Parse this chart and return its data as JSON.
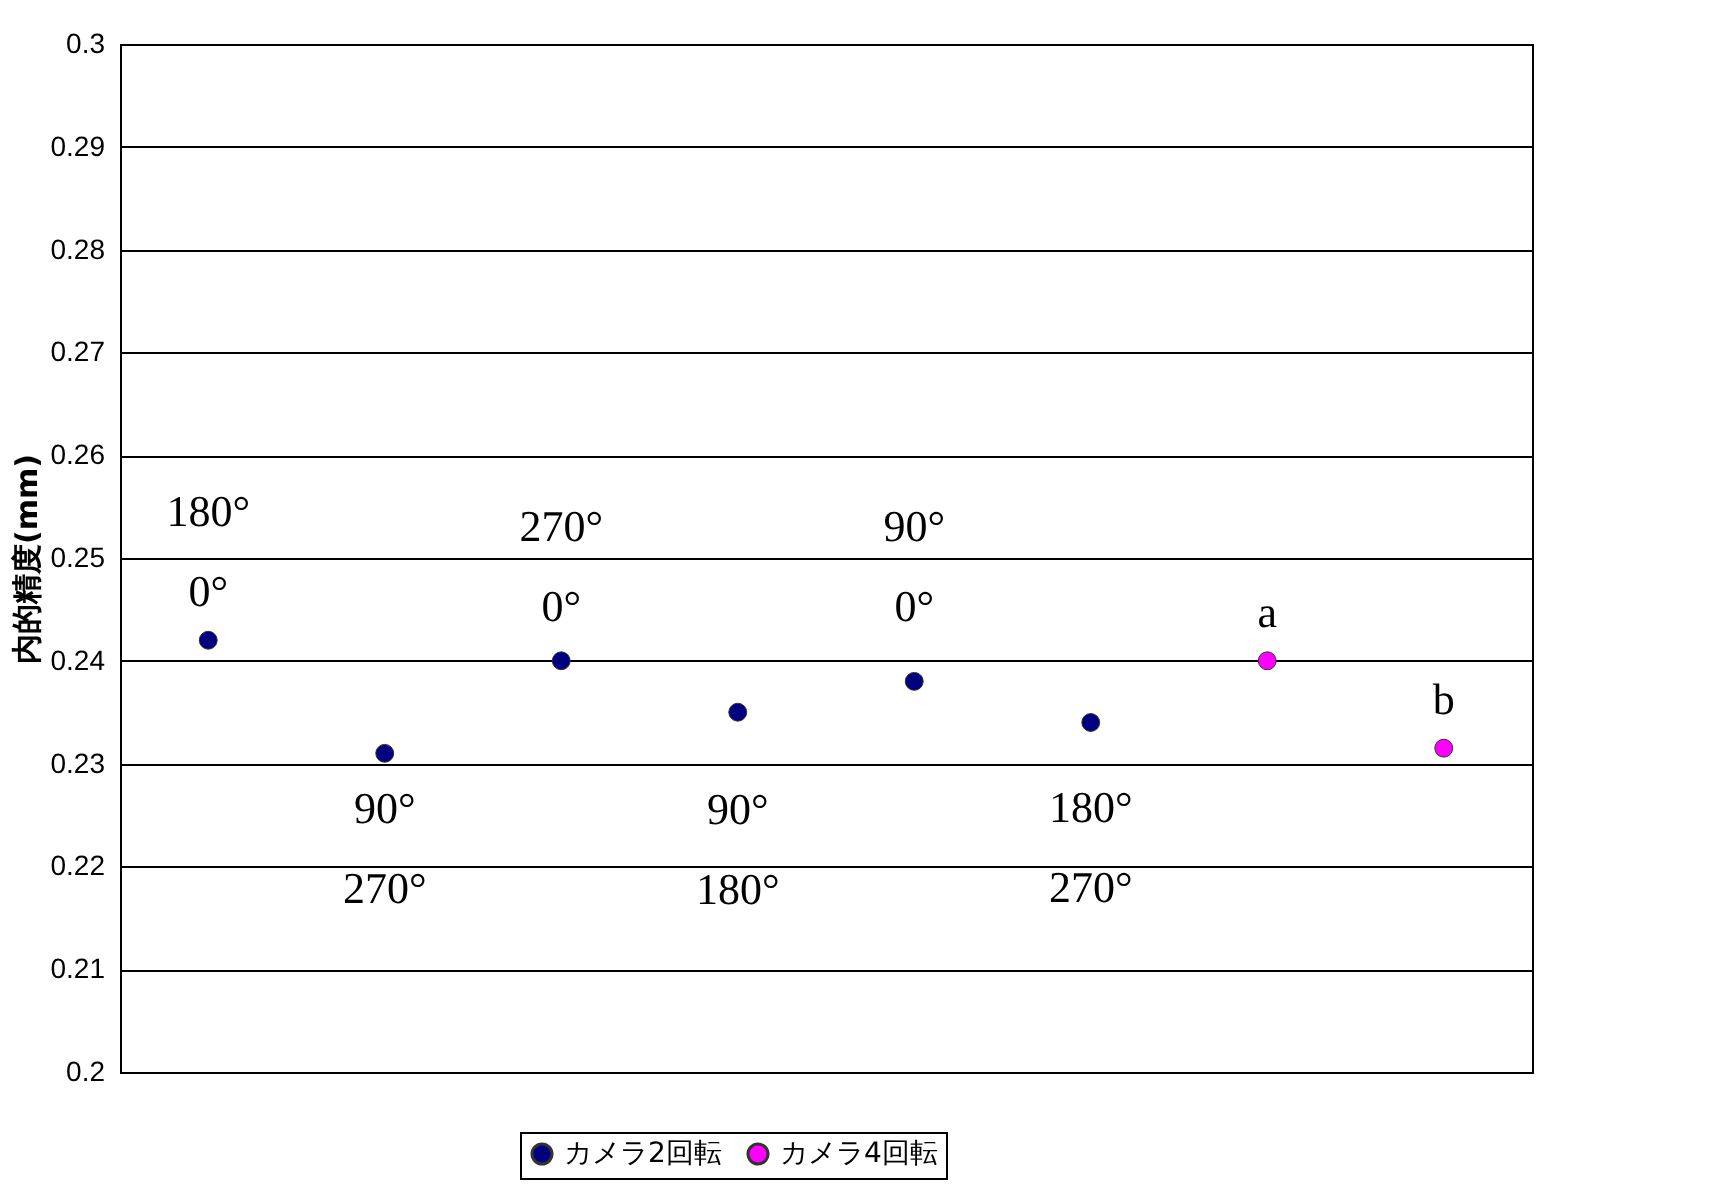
{
  "chart_data": {
    "type": "scatter",
    "ylabel": "内的精度(mm)",
    "categories": [
      null,
      null,
      null,
      null,
      null,
      null,
      null,
      null
    ],
    "series": [
      {
        "name": "カメラ2回転",
        "color": "#000080",
        "values": [
          0.242,
          0.231,
          0.24,
          0.235,
          0.238,
          0.234,
          null,
          null
        ],
        "value_labels": [
          "180°\n0°",
          "90°\n270°",
          "270°\n0°",
          "90°\n180°",
          "90°\n0°",
          "180°\n270°",
          null,
          null
        ]
      },
      {
        "name": "カメラ4回転",
        "color": "#ff00ff",
        "values": [
          null,
          null,
          null,
          null,
          null,
          null,
          0.24,
          0.2315
        ],
        "value_labels": [
          null,
          null,
          null,
          null,
          null,
          null,
          "a",
          "b"
        ]
      }
    ],
    "ylim": [
      0.2,
      0.3
    ],
    "yticks": [
      0.2,
      0.21,
      0.22,
      0.23,
      0.24,
      0.25,
      0.26,
      0.27,
      0.28,
      0.29,
      0.3
    ],
    "grid": "y",
    "legend": "bottom",
    "marker": "circle"
  }
}
